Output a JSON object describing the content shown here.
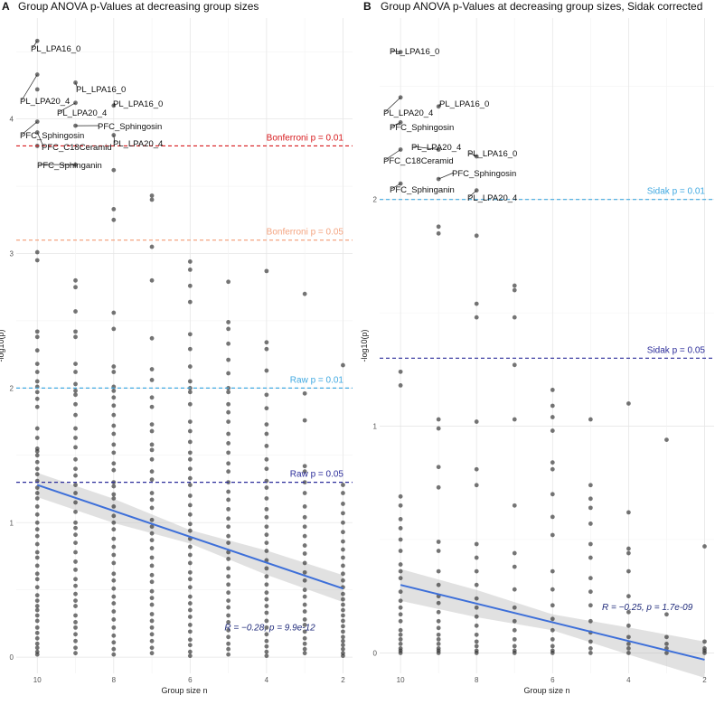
{
  "panels": [
    {
      "letter": "A",
      "title": "Group ANOVA p-Values at decreasing group sizes",
      "xlabel": "Group size n",
      "ylabel": "-log10(p)",
      "xticks": [
        10,
        8,
        6,
        4,
        2
      ],
      "yticks": [
        0,
        1,
        2,
        3,
        4
      ],
      "xlim": [
        10.55,
        1.75
      ],
      "ylim": [
        -0.12,
        4.75
      ],
      "thresholds": [
        {
          "label": "Bonferroni p = 0.01",
          "y": 3.8,
          "color": "#d7191c"
        },
        {
          "label": "Bonferroni p = 0.05",
          "y": 3.1,
          "color": "#f4a582"
        },
        {
          "label": "Raw p = 0.01",
          "y": 2.0,
          "color": "#41a9e1"
        },
        {
          "label": "Raw p = 0.05",
          "y": 1.3,
          "color": "#2b2c9a"
        }
      ],
      "regression": {
        "x": [
          10,
          2
        ],
        "y": [
          1.28,
          0.51
        ],
        "band_halfwidth": [
          0.09,
          0.09,
          0.05,
          0.09,
          0.1
        ],
        "band_x": [
          10,
          8,
          6,
          4,
          2
        ],
        "color": "#3d6fd9"
      },
      "stat_label": "R = −0.28, p = 9.9e-12",
      "stat_pos": {
        "x": 5.1,
        "y": 0.2
      },
      "labeled_points": [
        {
          "text": "PL_LPA16_0",
          "x": 10,
          "y": 4.58
        },
        {
          "text": "PL_LPA20_4",
          "x": 10,
          "y": 4.33
        },
        {
          "text": "PL_LPA16_0",
          "x": 9,
          "y": 4.27
        },
        {
          "text": "PL_LPA20_4",
          "x": 9,
          "y": 4.12
        },
        {
          "text": "PL_LPA16_0",
          "x": 8,
          "y": 4.1
        },
        {
          "text": "PFC_Sphingosin",
          "x": 10,
          "y": 3.98
        },
        {
          "text": "PFC_Sphingosin",
          "x": 9,
          "y": 3.95
        },
        {
          "text": "PL_LPA20_4",
          "x": 8,
          "y": 3.88
        },
        {
          "text": "PFC_C18Ceramid",
          "x": 10,
          "y": 3.9
        },
        {
          "text": "PFC_Sphinganin",
          "x": 9,
          "y": 3.66
        }
      ]
    },
    {
      "letter": "B",
      "title": "Group ANOVA p-Values at decreasing group sizes, Sidak corrected",
      "xlabel": "Group size n",
      "ylabel": "-log10(p)",
      "xticks": [
        10,
        8,
        6,
        4,
        2
      ],
      "yticks": [
        0,
        1,
        2
      ],
      "xlim": [
        10.55,
        1.75
      ],
      "ylim": [
        -0.09,
        2.8
      ],
      "thresholds": [
        {
          "label": "Sidak p = 0.01",
          "y": 2.0,
          "color": "#41a9e1"
        },
        {
          "label": "Sidak p = 0.05",
          "y": 1.3,
          "color": "#2b2c9a"
        }
      ],
      "regression": {
        "x": [
          10,
          2
        ],
        "y": [
          0.3,
          -0.03
        ],
        "band_halfwidth": [
          0.07,
          0.06,
          0.035,
          0.06,
          0.08
        ],
        "band_x": [
          10,
          8,
          6,
          4,
          2
        ],
        "color": "#3d6fd9"
      },
      "stat_label": "R = −0.25, p = 1.7e-09",
      "stat_pos": {
        "x": 4.7,
        "y": 0.19
      },
      "labeled_points": [
        {
          "text": "PL_LPA16_0",
          "x": 10,
          "y": 2.65
        },
        {
          "text": "PL_LPA20_4",
          "x": 10,
          "y": 2.45
        },
        {
          "text": "PL_LPA16_0",
          "x": 9,
          "y": 2.41
        },
        {
          "text": "PFC_Sphingosin",
          "x": 10,
          "y": 2.34
        },
        {
          "text": "PL_LPA20_4",
          "x": 9,
          "y": 2.22
        },
        {
          "text": "PL_LPA16_0",
          "x": 8,
          "y": 2.19
        },
        {
          "text": "PFC_C18Ceramid",
          "x": 10,
          "y": 2.22
        },
        {
          "text": "PFC_Sphingosin",
          "x": 9,
          "y": 2.09
        },
        {
          "text": "PFC_Sphinganin",
          "x": 10,
          "y": 2.07
        },
        {
          "text": "PL_LPA20_4",
          "x": 8,
          "y": 2.04
        }
      ]
    }
  ],
  "chart_data": [
    {
      "type": "scatter",
      "title": "Group ANOVA p-Values at decreasing group sizes",
      "xlabel": "Group size n",
      "ylabel": "-log10(p)",
      "xlim": [
        10.55,
        1.75
      ],
      "ylim": [
        -0.12,
        4.75
      ],
      "series": [
        {
          "x": 10,
          "values": [
            4.58,
            4.33,
            4.22,
            3.98,
            3.9,
            3.8,
            3.01,
            2.95,
            2.42,
            2.38,
            2.28,
            2.18,
            2.12,
            2.05,
            2.01,
            1.97,
            1.92,
            1.86,
            1.7,
            1.63,
            1.55,
            1.53,
            1.5,
            1.45,
            1.4,
            1.36,
            1.31,
            1.26,
            1.22,
            1.18,
            1.12,
            1.06,
            1.0,
            0.95,
            0.9,
            0.84,
            0.78,
            0.74,
            0.68,
            0.62,
            0.58,
            0.52,
            0.46,
            0.42,
            0.38,
            0.35,
            0.31,
            0.27,
            0.22,
            0.18,
            0.14,
            0.1,
            0.07,
            0.04,
            0.02
          ]
        },
        {
          "x": 9,
          "values": [
            4.27,
            4.12,
            3.95,
            3.66,
            2.8,
            2.75,
            2.57,
            2.42,
            2.38,
            2.18,
            2.12,
            2.03,
            1.98,
            1.95,
            1.88,
            1.8,
            1.7,
            1.63,
            1.56,
            1.47,
            1.4,
            1.35,
            1.28,
            1.22,
            1.15,
            1.08,
            1.0,
            0.96,
            0.91,
            0.85,
            0.78,
            0.71,
            0.65,
            0.58,
            0.53,
            0.47,
            0.42,
            0.38,
            0.31,
            0.26,
            0.22,
            0.17,
            0.12,
            0.07,
            0.03
          ]
        },
        {
          "x": 8,
          "values": [
            4.1,
            3.88,
            3.62,
            3.33,
            3.25,
            2.56,
            2.44,
            2.16,
            2.12,
            2.01,
            1.98,
            1.93,
            1.87,
            1.8,
            1.72,
            1.66,
            1.58,
            1.52,
            1.44,
            1.39,
            1.3,
            1.27,
            1.21,
            1.18,
            1.12,
            1.05,
            1.0,
            0.95,
            0.88,
            0.82,
            0.76,
            0.7,
            0.62,
            0.57,
            0.51,
            0.45,
            0.4,
            0.34,
            0.28,
            0.22,
            0.16,
            0.11,
            0.06,
            0.02
          ]
        },
        {
          "x": 7,
          "values": [
            3.43,
            3.4,
            3.05,
            2.8,
            2.37,
            2.14,
            2.06,
            1.93,
            1.86,
            1.73,
            1.68,
            1.58,
            1.54,
            1.47,
            1.38,
            1.32,
            1.22,
            1.17,
            1.11,
            1.02,
            0.97,
            0.92,
            0.87,
            0.81,
            0.74,
            0.68,
            0.61,
            0.56,
            0.49,
            0.44,
            0.39,
            0.32,
            0.27,
            0.22,
            0.17,
            0.12,
            0.07,
            0.03
          ]
        },
        {
          "x": 6,
          "values": [
            2.94,
            2.88,
            2.76,
            2.64,
            2.4,
            2.29,
            2.16,
            2.05,
            2.0,
            1.97,
            1.88,
            1.75,
            1.68,
            1.6,
            1.52,
            1.47,
            1.4,
            1.33,
            1.28,
            1.2,
            1.13,
            1.06,
            0.99,
            0.94,
            0.88,
            0.82,
            0.76,
            0.7,
            0.63,
            0.58,
            0.52,
            0.45,
            0.4,
            0.35,
            0.3,
            0.24,
            0.19,
            0.13,
            0.09,
            0.04,
            0.01
          ]
        },
        {
          "x": 5,
          "values": [
            2.79,
            2.49,
            2.44,
            2.33,
            2.21,
            2.11,
            2.0,
            1.97,
            1.88,
            1.82,
            1.75,
            1.66,
            1.59,
            1.52,
            1.44,
            1.38,
            1.3,
            1.23,
            1.17,
            1.1,
            1.03,
            0.97,
            0.9,
            0.85,
            0.78,
            0.73,
            0.66,
            0.6,
            0.54,
            0.48,
            0.42,
            0.37,
            0.31,
            0.26,
            0.2,
            0.15,
            0.1,
            0.06,
            0.02
          ]
        },
        {
          "x": 4,
          "values": [
            2.87,
            2.34,
            2.29,
            2.13,
            1.95,
            1.85,
            1.73,
            1.66,
            1.57,
            1.47,
            1.4,
            1.31,
            1.26,
            1.18,
            1.1,
            1.04,
            0.97,
            0.91,
            0.85,
            0.79,
            0.72,
            0.66,
            0.6,
            0.54,
            0.48,
            0.43,
            0.38,
            0.33,
            0.27,
            0.22,
            0.17,
            0.12,
            0.08,
            0.04,
            0.01
          ]
        },
        {
          "x": 3,
          "values": [
            2.7,
            1.96,
            1.76,
            1.42,
            1.38,
            1.3,
            1.22,
            1.12,
            1.04,
            0.97,
            0.9,
            0.83,
            0.77,
            0.7,
            0.63,
            0.57,
            0.5,
            0.45,
            0.39,
            0.34,
            0.28,
            0.24,
            0.19,
            0.14,
            0.1,
            0.06,
            0.03
          ]
        },
        {
          "x": 2,
          "values": [
            2.17,
            1.28,
            1.22,
            1.14,
            1.07,
            1.0,
            0.93,
            0.86,
            0.8,
            0.74,
            0.68,
            0.62,
            0.57,
            0.52,
            0.47,
            0.43,
            0.39,
            0.35,
            0.31,
            0.27,
            0.23,
            0.19,
            0.15,
            0.12,
            0.09,
            0.06,
            0.03,
            0.01
          ]
        }
      ]
    },
    {
      "type": "scatter",
      "title": "Group ANOVA p-Values at decreasing group sizes, Sidak corrected",
      "xlabel": "Group size n",
      "ylabel": "-log10(p)",
      "xlim": [
        10.55,
        1.75
      ],
      "ylim": [
        -0.09,
        2.8
      ],
      "series": [
        {
          "x": 10,
          "values": [
            2.65,
            2.45,
            2.34,
            2.22,
            2.07,
            1.24,
            1.18,
            0.69,
            0.65,
            0.59,
            0.55,
            0.5,
            0.45,
            0.39,
            0.36,
            0.33,
            0.27,
            0.23,
            0.2,
            0.17,
            0.14,
            0.1,
            0.08,
            0.06,
            0.04,
            0.02,
            0.01,
            0.0
          ]
        },
        {
          "x": 9,
          "values": [
            2.41,
            2.22,
            2.09,
            1.88,
            1.85,
            1.03,
            0.99,
            0.82,
            0.73,
            0.49,
            0.45,
            0.36,
            0.3,
            0.25,
            0.22,
            0.18,
            0.14,
            0.11,
            0.08,
            0.06,
            0.04,
            0.02,
            0.01,
            0.0
          ]
        },
        {
          "x": 8,
          "values": [
            2.19,
            2.04,
            1.84,
            1.54,
            1.48,
            1.02,
            0.81,
            0.74,
            0.48,
            0.42,
            0.36,
            0.3,
            0.24,
            0.2,
            0.16,
            0.12,
            0.08,
            0.05,
            0.03,
            0.01,
            0.0
          ]
        },
        {
          "x": 7,
          "values": [
            1.62,
            1.6,
            1.48,
            1.27,
            1.03,
            0.65,
            0.44,
            0.38,
            0.28,
            0.2,
            0.14,
            0.1,
            0.06,
            0.03,
            0.01,
            0.0
          ]
        },
        {
          "x": 6,
          "values": [
            1.16,
            1.09,
            1.04,
            0.98,
            0.84,
            0.81,
            0.7,
            0.6,
            0.52,
            0.36,
            0.28,
            0.21,
            0.15,
            0.1,
            0.06,
            0.03,
            0.01,
            0.0
          ]
        },
        {
          "x": 5,
          "values": [
            1.03,
            0.74,
            0.68,
            0.64,
            0.57,
            0.48,
            0.42,
            0.33,
            0.27,
            0.21,
            0.14,
            0.09,
            0.05,
            0.02,
            0.0
          ]
        },
        {
          "x": 4,
          "values": [
            1.1,
            0.62,
            0.46,
            0.44,
            0.36,
            0.25,
            0.18,
            0.12,
            0.07,
            0.04,
            0.02,
            0.0
          ]
        },
        {
          "x": 3,
          "values": [
            0.94,
            0.17,
            0.07,
            0.04,
            0.02,
            0.0
          ]
        },
        {
          "x": 2,
          "values": [
            0.47,
            0.05,
            0.02,
            0.01,
            0.0
          ]
        }
      ]
    }
  ]
}
